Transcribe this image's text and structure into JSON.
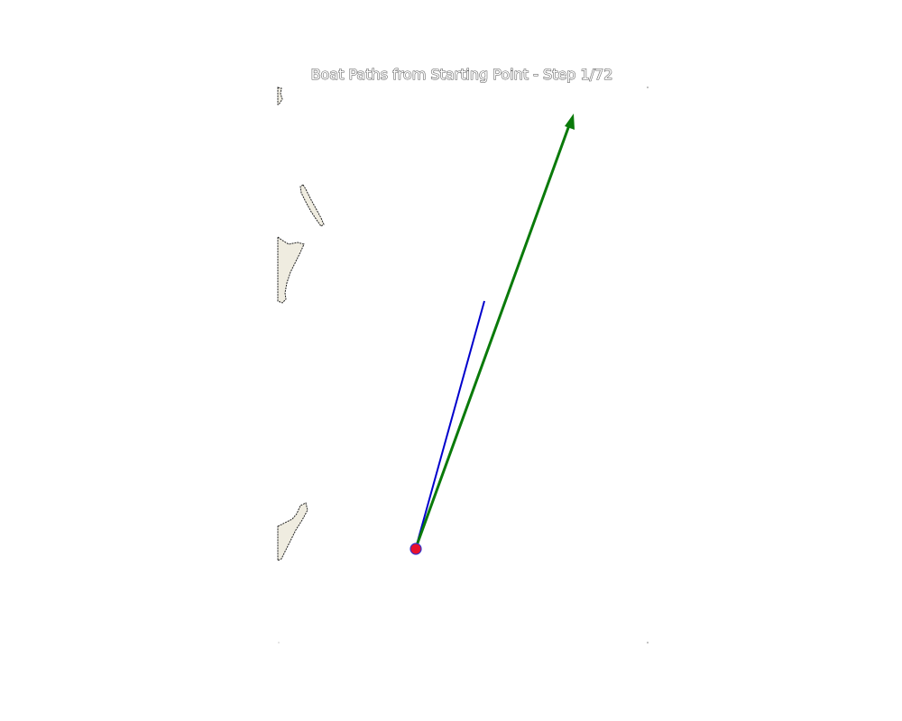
{
  "title": "Boat Paths from Starting Point - Step 1/72",
  "colors": {
    "background": "#ffffff",
    "land_fill": "#efece0",
    "coast_line": "#222222",
    "path_blue": "#0000cc",
    "path_green": "#0a7a0a",
    "start_marker_fill": "#e8112d",
    "start_marker_edge": "#3333cc"
  },
  "map": {
    "start_marker": "start-point",
    "paths": [
      {
        "name": "blue",
        "arrow": false
      },
      {
        "name": "green",
        "arrow": true
      }
    ]
  }
}
